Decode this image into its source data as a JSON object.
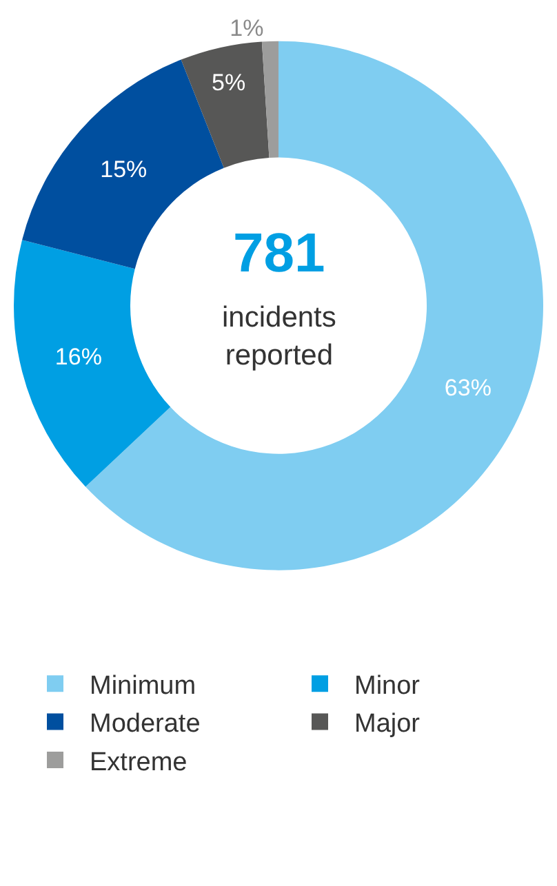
{
  "chart_data": {
    "type": "donut",
    "categories": [
      "Minimum",
      "Minor",
      "Moderate",
      "Major",
      "Extreme"
    ],
    "values": [
      63,
      16,
      15,
      5,
      1
    ],
    "colors": [
      "#7fcdf1",
      "#009fe3",
      "#004f9f",
      "#575756",
      "#9d9d9c"
    ],
    "value_labels": [
      "63%",
      "16%",
      "15%",
      "5%",
      "1%"
    ],
    "annotations": [
      "781",
      "incidents reported"
    ],
    "legend": "bottom"
  }
}
